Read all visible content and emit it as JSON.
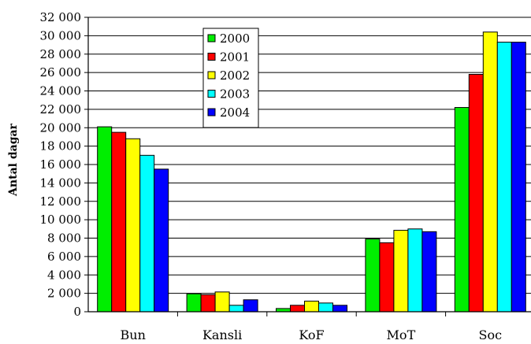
{
  "chart_data": {
    "type": "bar",
    "title": "",
    "xlabel": "",
    "ylabel": "Antal dagar",
    "ylim": [
      0,
      32000
    ],
    "yticks": [
      0,
      2000,
      4000,
      6000,
      8000,
      10000,
      12000,
      14000,
      16000,
      18000,
      20000,
      22000,
      24000,
      26000,
      28000,
      30000,
      32000
    ],
    "ytick_labels": [
      "0",
      "2 000",
      "4 000",
      "6 000",
      "8 000",
      "10 000",
      "12 000",
      "14 000",
      "16 000",
      "18 000",
      "20 000",
      "22 000",
      "24 000",
      "26 000",
      "28 000",
      "30 000",
      "32 000"
    ],
    "grid": true,
    "legend_position": "top-center",
    "categories": [
      "Bun",
      "Kansli",
      "KoF",
      "MoT",
      "Soc"
    ],
    "series": [
      {
        "name": "2000",
        "color": "#00ee00",
        "values": [
          20100,
          1950,
          350,
          7900,
          22200
        ]
      },
      {
        "name": "2001",
        "color": "#ff0000",
        "values": [
          19500,
          1850,
          700,
          7500,
          25800
        ]
      },
      {
        "name": "2002",
        "color": "#ffff00",
        "values": [
          18800,
          2150,
          1150,
          8850,
          30400
        ]
      },
      {
        "name": "2003",
        "color": "#00ffff",
        "values": [
          17000,
          700,
          950,
          9000,
          29300
        ]
      },
      {
        "name": "2004",
        "color": "#0000ff",
        "values": [
          15500,
          1300,
          700,
          8700,
          29300
        ]
      }
    ]
  }
}
